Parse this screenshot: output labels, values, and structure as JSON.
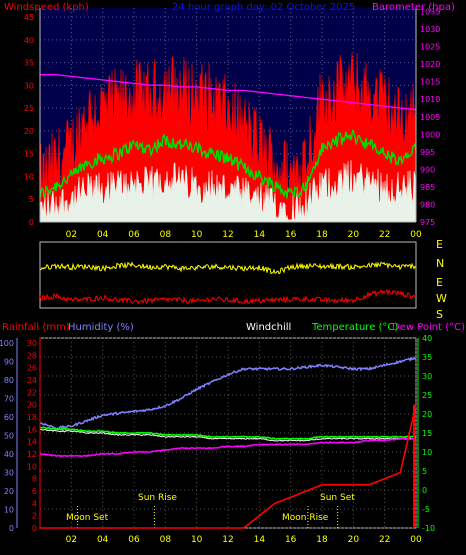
{
  "header": {
    "windspeed_label": "Windspeed (kph)",
    "title": "24 hour graph day: 02 October 2025",
    "barometer_label": "Barometer (hpa)"
  },
  "lower_header": {
    "rainfall_label": "Rainfall (mm)",
    "humidity_label": "Humidity (%)",
    "windchill_label": "Windchill",
    "temperature_label": "Temperature (°C)",
    "dewpoint_label": "Dew Point (°C)"
  },
  "direction_labels": [
    "E",
    "N",
    "W",
    "S"
  ],
  "astro": {
    "moon_set": "Moon Set",
    "sun_rise": "Sun Rise",
    "moon_rise": "Moon Rise",
    "sun_set": "Sun Set"
  },
  "colors": {
    "background": "#000000",
    "plot_bg": "#00004a",
    "wind_gust": "#ff0000",
    "wind_avg": "#00dd00",
    "wind_speed": "#e8f2e8",
    "barometer": "#ff00ff",
    "direction_n": "#ffff00",
    "direction_s": "#ff0000",
    "humidity": "#8080ff",
    "temperature": "#00ff00",
    "dewpoint": "#ff00ff",
    "windchill": "#ffffff",
    "rainfall": "#ff0000",
    "left_axis": "#ff0000",
    "right_axis_top": "#ff00ff",
    "right_axis_bottom": "#00ff00",
    "humidity_axis": "#8080ff",
    "rain_axis": "#ff0000",
    "hour_labels": "#ffff00"
  },
  "chart_data": [
    {
      "type": "area",
      "x_ticks": [
        "02",
        "04",
        "06",
        "08",
        "10",
        "12",
        "14",
        "16",
        "18",
        "20",
        "22",
        "00"
      ],
      "x": [
        0,
        1,
        2,
        3,
        4,
        5,
        6,
        7,
        8,
        9,
        10,
        11,
        12,
        13,
        14,
        15,
        16,
        17,
        18,
        19,
        20,
        21,
        22,
        23,
        24
      ],
      "y_left_ticks": [
        0,
        5,
        10,
        15,
        20,
        25,
        30,
        35,
        40,
        45
      ],
      "y_left_range": [
        0,
        47
      ],
      "y_right_ticks": [
        975,
        980,
        985,
        990,
        995,
        1000,
        1005,
        1010,
        1015,
        1020,
        1025,
        1030,
        1035
      ],
      "y_right_range": [
        975,
        1036
      ],
      "series": [
        {
          "axis": "left",
          "values": [
            9,
            13,
            16,
            24,
            25,
            26,
            28,
            27,
            30,
            29,
            28,
            27,
            24,
            21,
            17,
            13,
            10,
            15,
            27,
            29,
            30,
            28,
            26,
            22,
            25
          ]
        },
        {
          "axis": "left",
          "values": [
            6,
            8,
            10,
            13,
            14,
            15,
            17,
            16,
            18,
            17,
            16,
            15,
            14,
            12,
            10,
            8,
            6,
            8,
            16,
            18,
            19,
            17,
            15,
            13,
            16
          ]
        },
        {
          "axis": "left",
          "values": [
            3,
            4,
            5,
            7,
            7,
            8,
            9,
            8,
            10,
            9,
            8,
            8,
            7,
            6,
            5,
            4,
            3,
            4,
            8,
            9,
            10,
            9,
            8,
            7,
            8
          ]
        },
        {
          "axis": "right",
          "values": [
            1017,
            1017,
            1016.5,
            1016,
            1015.5,
            1015,
            1014.5,
            1014,
            1014,
            1013.5,
            1013.5,
            1013,
            1012.5,
            1012.5,
            1012,
            1011.5,
            1011,
            1010.5,
            1010,
            1009.5,
            1009,
            1008.5,
            1008,
            1007.5,
            1007
          ]
        }
      ]
    },
    {
      "type": "line",
      "x_ticks": [
        "02",
        "04",
        "06",
        "08",
        "10",
        "12",
        "14",
        "16",
        "18",
        "20",
        "22",
        "00"
      ],
      "x": [
        0,
        1,
        2,
        3,
        4,
        5,
        6,
        7,
        8,
        9,
        10,
        11,
        12,
        13,
        14,
        15,
        16,
        17,
        18,
        19,
        20,
        21,
        22,
        23,
        24
      ],
      "series": [
        {
          "values": [
            0.6,
            0.64,
            0.62,
            0.63,
            0.6,
            0.64,
            0.65,
            0.62,
            0.63,
            0.6,
            0.61,
            0.63,
            0.62,
            0.6,
            0.62,
            0.53,
            0.62,
            0.64,
            0.63,
            0.63,
            0.62,
            0.64,
            0.66,
            0.62,
            0.64
          ]
        },
        {
          "values": [
            0.15,
            0.18,
            0.12,
            0.13,
            0.16,
            0.12,
            0.1,
            0.11,
            0.13,
            0.12,
            0.1,
            0.14,
            0.12,
            0.1,
            0.11,
            0.12,
            0.13,
            0.14,
            0.12,
            0.11,
            0.12,
            0.2,
            0.25,
            0.22,
            0.17
          ]
        }
      ]
    },
    {
      "type": "line",
      "x_ticks": [
        "02",
        "04",
        "06",
        "08",
        "10",
        "12",
        "14",
        "16",
        "18",
        "20",
        "22",
        "00"
      ],
      "x": [
        0,
        1,
        2,
        3,
        4,
        5,
        6,
        7,
        8,
        9,
        10,
        11,
        12,
        13,
        14,
        15,
        16,
        17,
        18,
        19,
        20,
        21,
        22,
        23,
        24
      ],
      "humidity_ticks": [
        0,
        10,
        20,
        30,
        40,
        50,
        60,
        70,
        80,
        90,
        100
      ],
      "rain_ticks": [
        0,
        2,
        4,
        6,
        8,
        10,
        12,
        14,
        16,
        18,
        20,
        22,
        24,
        26,
        28,
        30
      ],
      "temp_ticks": [
        -10,
        -5,
        0,
        5,
        10,
        15,
        20,
        25,
        30,
        35,
        40
      ],
      "temp_range": [
        -10,
        40
      ],
      "series": [
        {
          "axis": "humidity",
          "values": [
            57,
            54,
            55,
            58,
            61,
            62,
            63,
            64,
            66,
            70,
            75,
            79,
            83,
            86,
            86,
            86,
            86,
            87,
            88,
            87,
            86,
            86,
            88,
            90,
            92
          ]
        },
        {
          "axis": "temperature",
          "values": [
            16.5,
            16,
            16,
            15.5,
            15.5,
            15,
            15,
            15,
            14.5,
            14.5,
            14.5,
            14,
            14,
            14,
            14,
            13.5,
            13.5,
            13.5,
            14,
            14,
            14,
            14,
            14,
            14,
            14
          ]
        },
        {
          "axis": "temperature",
          "values": [
            16,
            15.5,
            15.5,
            15,
            15,
            14.5,
            14.5,
            14.5,
            14,
            14,
            14,
            13.5,
            13.5,
            13.5,
            13.5,
            13,
            13,
            13,
            13.5,
            13.5,
            13.5,
            13.5,
            13.5,
            13.5,
            13.5
          ]
        },
        {
          "axis": "temperature",
          "values": [
            9.5,
            9,
            9,
            9,
            9.5,
            9.5,
            10,
            10,
            10.5,
            11,
            11,
            11,
            11.5,
            11.5,
            12,
            12,
            12,
            12,
            12.5,
            12.5,
            12.5,
            13,
            13,
            13.5,
            13.5
          ]
        },
        {
          "axis": "rainfall",
          "values": [
            0,
            0,
            0,
            0,
            0,
            0,
            0,
            0,
            0,
            0,
            0,
            0,
            0,
            0,
            2,
            4,
            5,
            6,
            7,
            7,
            7,
            7,
            8,
            9,
            20
          ]
        }
      ]
    }
  ]
}
